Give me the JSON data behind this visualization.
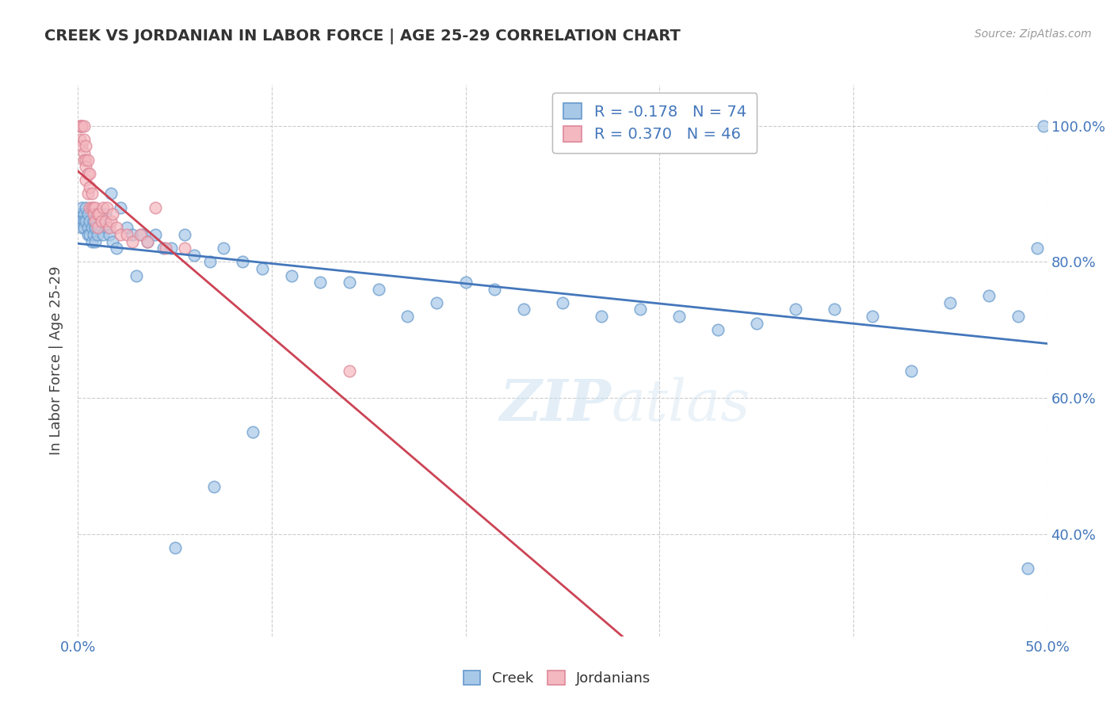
{
  "title": "CREEK VS JORDANIAN IN LABOR FORCE | AGE 25-29 CORRELATION CHART",
  "source": "Source: ZipAtlas.com",
  "ylabel": "In Labor Force | Age 25-29",
  "xlim": [
    0.0,
    0.5
  ],
  "ylim": [
    0.25,
    1.06
  ],
  "blue_R": -0.178,
  "blue_N": 74,
  "pink_R": 0.37,
  "pink_N": 46,
  "blue_color": "#a8c8e8",
  "pink_color": "#f4b8c0",
  "blue_edge_color": "#6699cc",
  "pink_edge_color": "#dd8899",
  "blue_line_color": "#4477bb",
  "pink_line_color": "#cc4455",
  "legend_label_blue": "Creek",
  "legend_label_pink": "Jordanians",
  "blue_x": [
    0.001,
    0.001,
    0.002,
    0.002,
    0.002,
    0.003,
    0.003,
    0.003,
    0.004,
    0.004,
    0.005,
    0.005,
    0.005,
    0.006,
    0.006,
    0.007,
    0.007,
    0.008,
    0.008,
    0.009,
    0.009,
    0.01,
    0.011,
    0.012,
    0.013,
    0.014,
    0.015,
    0.016,
    0.017,
    0.018,
    0.02,
    0.022,
    0.025,
    0.028,
    0.03,
    0.033,
    0.036,
    0.04,
    0.044,
    0.048,
    0.055,
    0.06,
    0.068,
    0.075,
    0.085,
    0.095,
    0.11,
    0.125,
    0.14,
    0.155,
    0.17,
    0.185,
    0.2,
    0.215,
    0.23,
    0.25,
    0.27,
    0.29,
    0.31,
    0.33,
    0.35,
    0.37,
    0.39,
    0.41,
    0.43,
    0.45,
    0.47,
    0.485,
    0.495,
    0.498,
    0.05,
    0.07,
    0.09,
    0.49
  ],
  "blue_y": [
    0.87,
    0.86,
    0.88,
    0.86,
    0.85,
    0.87,
    0.86,
    0.85,
    0.88,
    0.86,
    0.87,
    0.85,
    0.84,
    0.86,
    0.84,
    0.85,
    0.83,
    0.86,
    0.84,
    0.85,
    0.83,
    0.84,
    0.85,
    0.86,
    0.84,
    0.87,
    0.85,
    0.84,
    0.9,
    0.83,
    0.82,
    0.88,
    0.85,
    0.84,
    0.78,
    0.84,
    0.83,
    0.84,
    0.82,
    0.82,
    0.84,
    0.81,
    0.8,
    0.82,
    0.8,
    0.79,
    0.78,
    0.77,
    0.77,
    0.76,
    0.72,
    0.74,
    0.77,
    0.76,
    0.73,
    0.74,
    0.72,
    0.73,
    0.72,
    0.7,
    0.71,
    0.73,
    0.73,
    0.72,
    0.64,
    0.74,
    0.75,
    0.72,
    0.82,
    1.0,
    0.38,
    0.47,
    0.55,
    0.35
  ],
  "pink_x": [
    0.001,
    0.001,
    0.001,
    0.002,
    0.002,
    0.002,
    0.003,
    0.003,
    0.003,
    0.003,
    0.004,
    0.004,
    0.004,
    0.004,
    0.005,
    0.005,
    0.005,
    0.006,
    0.006,
    0.006,
    0.007,
    0.007,
    0.008,
    0.008,
    0.009,
    0.009,
    0.01,
    0.01,
    0.011,
    0.012,
    0.013,
    0.014,
    0.015,
    0.016,
    0.017,
    0.018,
    0.02,
    0.022,
    0.025,
    0.028,
    0.032,
    0.036,
    0.04,
    0.045,
    0.055,
    0.14
  ],
  "pink_y": [
    1.0,
    1.0,
    0.98,
    1.0,
    1.0,
    0.97,
    1.0,
    0.98,
    0.96,
    0.95,
    0.97,
    0.95,
    0.94,
    0.92,
    0.95,
    0.93,
    0.9,
    0.93,
    0.91,
    0.88,
    0.9,
    0.88,
    0.88,
    0.87,
    0.88,
    0.86,
    0.87,
    0.85,
    0.87,
    0.86,
    0.88,
    0.86,
    0.88,
    0.85,
    0.86,
    0.87,
    0.85,
    0.84,
    0.84,
    0.83,
    0.84,
    0.83,
    0.88,
    0.82,
    0.82,
    0.64
  ]
}
